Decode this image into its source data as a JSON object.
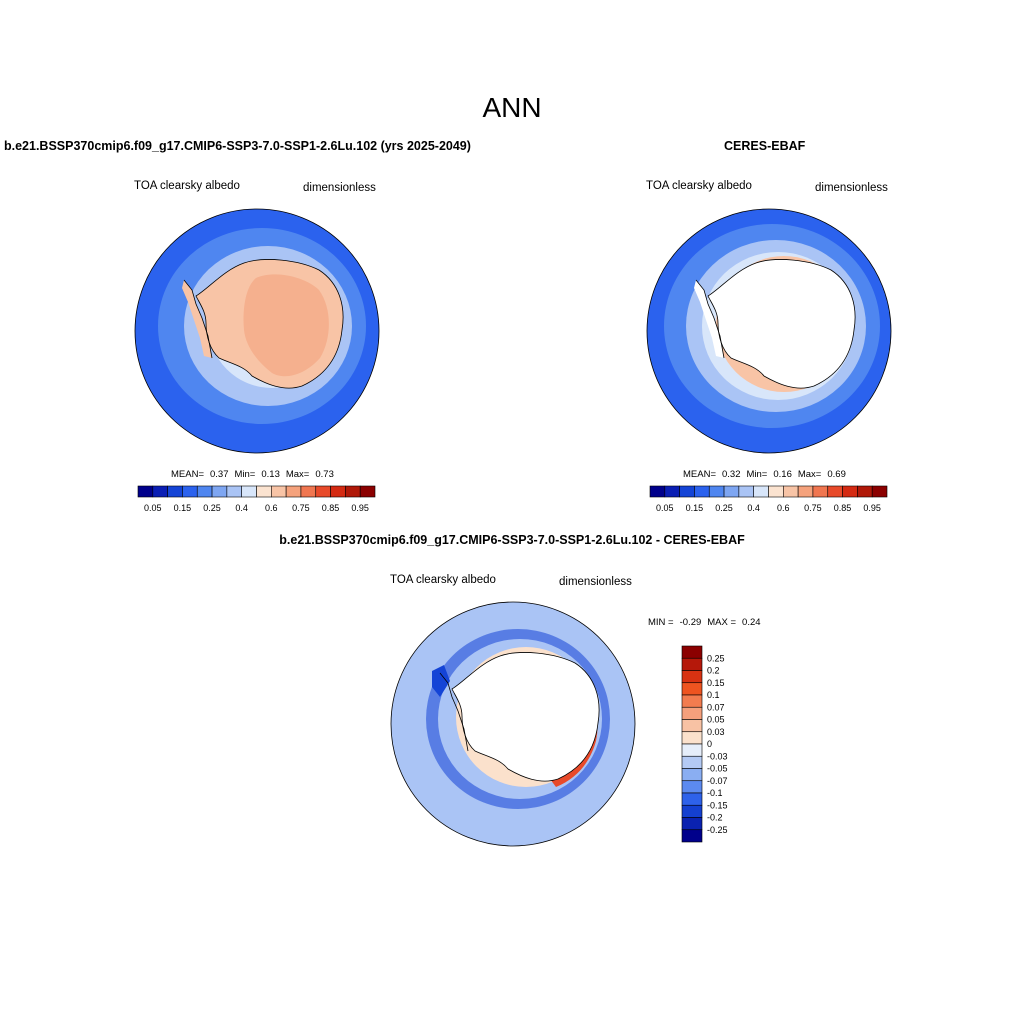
{
  "main_title": "ANN",
  "panels": [
    {
      "title": "b.e21.BSSP370cmip6.f09_g17.CMIP6-SSP3-7.0-SSP1-2.6Lu.102 (yrs 2025-2049)",
      "variable": "TOA clearsky albedo",
      "units": "dimensionless",
      "stats": {
        "mean_label": "MEAN=",
        "mean": "0.37",
        "min_label": "Min=",
        "min": "0.13",
        "max_label": "Max=",
        "max": "0.73"
      }
    },
    {
      "title": "CERES-EBAF",
      "variable": "TOA clearsky albedo",
      "units": "dimensionless",
      "stats": {
        "mean_label": "MEAN=",
        "mean": "0.32",
        "min_label": "Min=",
        "min": "0.16",
        "max_label": "Max=",
        "max": "0.69"
      }
    },
    {
      "title": "b.e21.BSSP370cmip6.f09_g17.CMIP6-SSP3-7.0-SSP1-2.6Lu.102 - CERES-EBAF",
      "variable": "TOA clearsky albedo",
      "units": "dimensionless",
      "stats": {
        "min_label": "MIN =",
        "min": "-0.29",
        "max_label": "MAX =",
        "max": "0.24"
      }
    }
  ],
  "colorbar_main": {
    "colors": [
      "#00008b",
      "#0a1eb4",
      "#1444d6",
      "#2b62ee",
      "#4f86f0",
      "#7ea6f2",
      "#aac4f5",
      "#d8e6fa",
      "#fbe3d0",
      "#f8c4a6",
      "#f5a27c",
      "#f07650",
      "#e84a2a",
      "#d42a12",
      "#b01808",
      "#8b0000"
    ],
    "labels": [
      "0.05",
      "0.15",
      "0.25",
      "0.4",
      "0.6",
      "0.75",
      "0.85",
      "0.95"
    ]
  },
  "colorbar_diff": {
    "colors": [
      "#8b0000",
      "#b5180a",
      "#d83212",
      "#ee5420",
      "#f27c4f",
      "#f5a07c",
      "#f8c2a4",
      "#fbe1cc",
      "#e6eefa",
      "#b4caf4",
      "#8aaef2",
      "#5c8af0",
      "#2e62ea",
      "#1440d0",
      "#0a22b0",
      "#00008b"
    ],
    "labels": [
      "0.25",
      "0.2",
      "0.15",
      "0.1",
      "0.07",
      "0.05",
      "0.03",
      "0",
      "-0.03",
      "-0.05",
      "-0.07",
      "-0.1",
      "-0.15",
      "-0.2",
      "-0.25"
    ]
  },
  "map_colors": {
    "ocean_outer": "#2b62ee",
    "ocean_mid": "#4f86f0",
    "ocean_light": "#aac4f5",
    "ocean_pale": "#d8e6fa",
    "land_model": "#f8c4a6",
    "land_model_interior": "#f5b08e",
    "land_blank": "#ffffff",
    "diff_base": "#aac4f5",
    "diff_dark": "#1444d6",
    "diff_red": "#e84a2a",
    "diff_pale": "#fbe1cc"
  }
}
